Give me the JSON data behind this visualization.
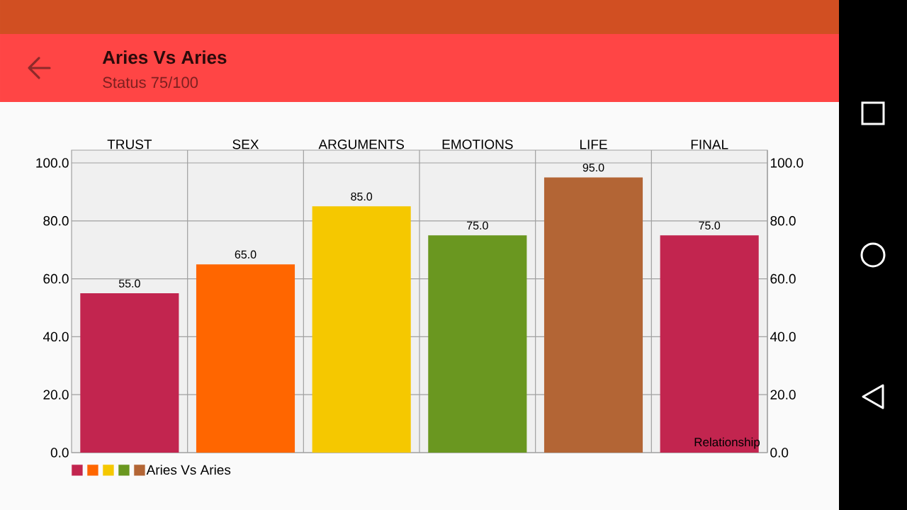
{
  "chart_data": {
    "type": "bar",
    "title": "Aries Vs Aries",
    "subtitle": "Status 75/100",
    "categories": [
      "TRUST",
      "SEX",
      "ARGUMENTS",
      "EMOTIONS",
      "LIFE",
      "FINAL"
    ],
    "series": [
      {
        "name": "Aries Vs Aries",
        "values": [
          55,
          65,
          85,
          75,
          95,
          75
        ],
        "colors": [
          "#c2254f",
          "#ff6600",
          "#f5c800",
          "#6a9720",
          "#b36535",
          "#c2254f"
        ],
        "value_labels": [
          "55.0",
          "65.0",
          "85.0",
          "75.0",
          "95.0",
          "75.0"
        ]
      }
    ],
    "ylim": [
      0,
      104.4
    ],
    "yticks": [
      {
        "value": 0,
        "label": "0.0"
      },
      {
        "value": 20,
        "label": "20.0"
      },
      {
        "value": 40,
        "label": "40.0"
      },
      {
        "value": 60,
        "label": "60.0"
      },
      {
        "value": 80,
        "label": "80.0"
      },
      {
        "value": 100,
        "label": "100.0"
      }
    ],
    "y2lim": [
      0,
      104.4
    ],
    "y2ticks": [
      {
        "value": 0,
        "label": "0.0"
      },
      {
        "value": 20,
        "label": "20.0"
      },
      {
        "value": 40,
        "label": "40.0"
      },
      {
        "value": 60,
        "label": "60.0"
      },
      {
        "value": 80,
        "label": "80.0"
      },
      {
        "value": 100,
        "label": "100.0"
      }
    ],
    "grid": true,
    "legend": "bottom left",
    "annotations": [
      "Relationship"
    ]
  }
}
